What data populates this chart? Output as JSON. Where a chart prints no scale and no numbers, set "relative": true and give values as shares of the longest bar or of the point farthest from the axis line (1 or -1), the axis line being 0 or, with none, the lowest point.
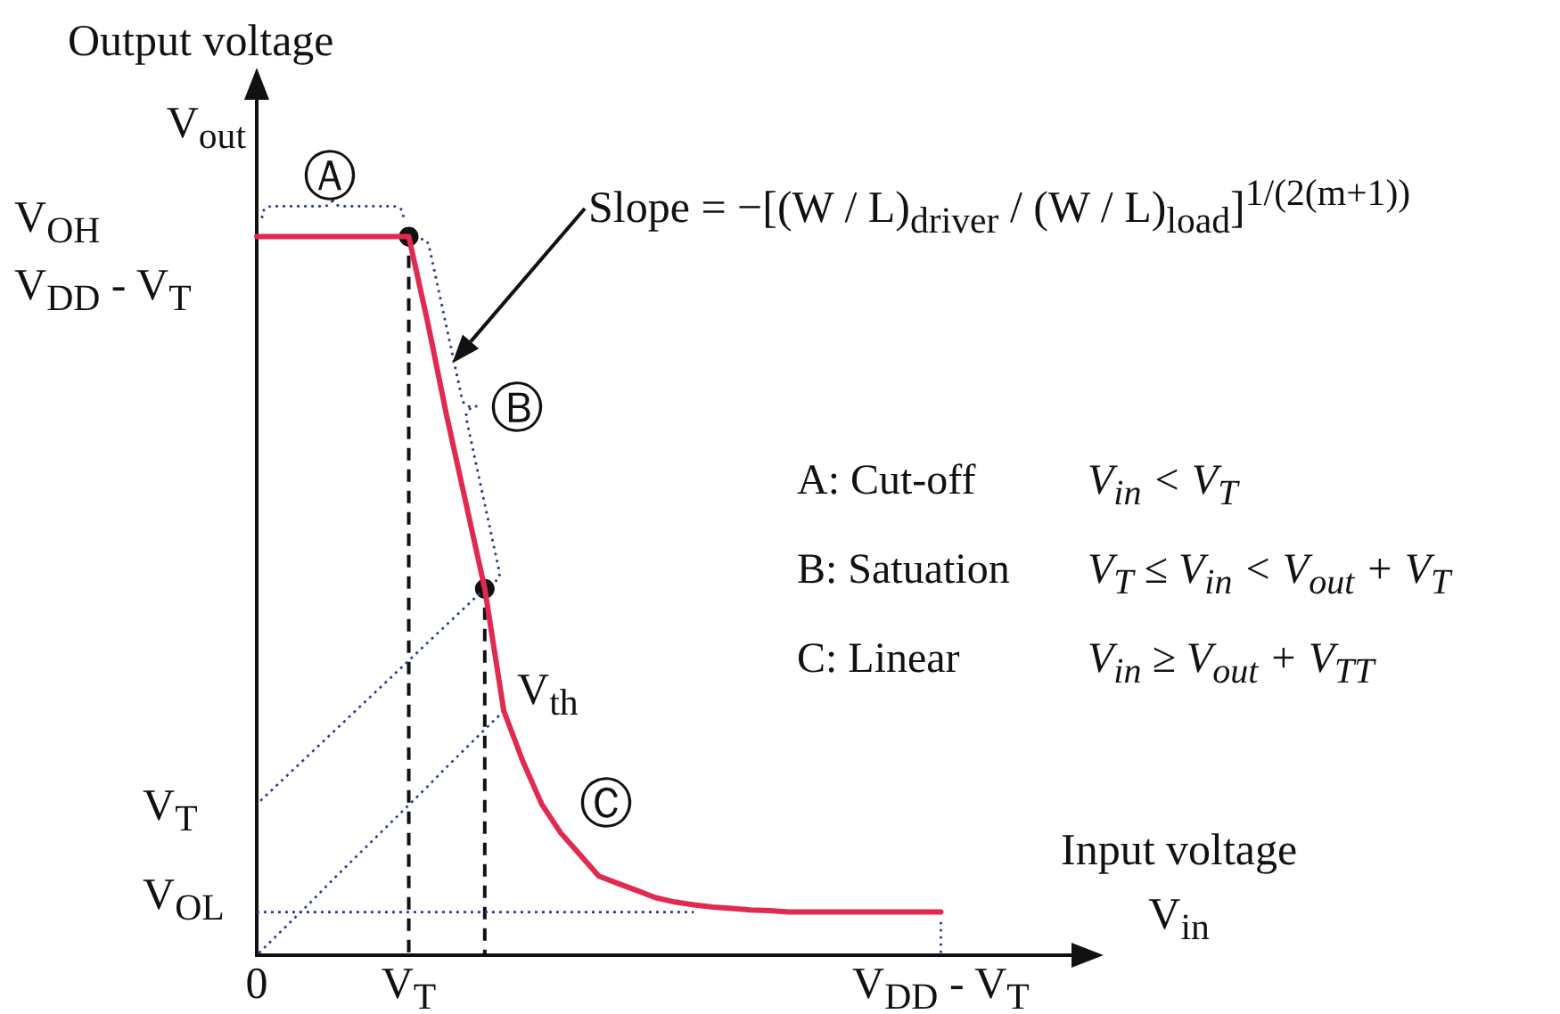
{
  "chart_data": {
    "type": "line",
    "relative": true,
    "xlabel": "Input voltage\nV$_{in}$",
    "ylabel": "Output voltage",
    "categories": [
      "0",
      null,
      null,
      null,
      null,
      null,
      null,
      null,
      "V$_{T}$",
      null,
      null,
      null,
      null,
      null,
      null,
      null,
      null,
      null,
      null,
      null,
      null,
      null,
      null,
      null,
      null,
      null,
      null,
      null,
      null,
      null,
      null,
      null,
      null,
      null,
      null,
      null,
      "V$_{DD}$ - V$_{T}$",
      null,
      null,
      null,
      null,
      null,
      null,
      null,
      null
    ],
    "series": [
      {
        "color": "#e02a50",
        "values": [
          1,
          1,
          1,
          1,
          1,
          1,
          1,
          1,
          1,
          0.88,
          0.75,
          0.63,
          0.51,
          0.34,
          0.27,
          0.21,
          0.17,
          0.14,
          0.11,
          0.1,
          0.09,
          0.08,
          0.074,
          0.07,
          0.067,
          0.065,
          0.063,
          0.062,
          0.06,
          0.06,
          0.06,
          0.06,
          0.06,
          0.06,
          0.06,
          0.06,
          0.06,
          null,
          null,
          null,
          null,
          null,
          null,
          null,
          null
        ]
      },
      {
        "color": "#2a3c8f",
        "line_style": "dotted",
        "values": [
          0,
          0.026,
          0.052,
          0.078,
          0.105,
          0.131,
          0.157,
          0.183,
          0.209,
          0.235,
          0.262,
          0.288,
          0.314,
          0.34,
          null,
          null,
          null,
          null,
          null,
          null,
          null,
          null,
          null,
          null,
          null,
          null,
          null,
          null,
          null,
          null,
          null,
          null,
          null,
          null,
          null,
          null,
          null,
          null,
          null,
          null,
          null,
          null,
          null,
          null,
          null
        ]
      },
      {
        "color": "#2a3c8f",
        "line_style": "dotted",
        "values": [
          0.21,
          0.235,
          0.26,
          0.285,
          0.31,
          0.335,
          0.36,
          0.385,
          0.41,
          0.435,
          0.46,
          0.485,
          0.51,
          null,
          null,
          null,
          null,
          null,
          null,
          null,
          null,
          null,
          null,
          null,
          null,
          null,
          null,
          null,
          null,
          null,
          null,
          null,
          null,
          null,
          null,
          null,
          null,
          null,
          null,
          null,
          null,
          null,
          null,
          null,
          null
        ]
      },
      {
        "color": "#2a3c8f",
        "line_style": "dotted",
        "values": [
          0.06,
          0.06,
          0.06,
          0.06,
          0.06,
          0.06,
          0.06,
          0.06,
          0.06,
          0.06,
          0.06,
          0.06,
          0.06,
          0.06,
          0.06,
          0.06,
          0.06,
          0.06,
          0.06,
          0.06,
          0.06,
          0.06,
          0.06,
          0.06,
          null,
          null,
          null,
          null,
          null,
          null,
          null,
          null,
          null,
          null,
          null,
          null,
          null,
          null,
          null,
          null,
          null,
          null,
          null,
          null,
          null
        ]
      },
      {
        "type": "lollipop",
        "color": "#111111",
        "line_style": "dashed",
        "marker": "circle",
        "values": [
          null,
          null,
          null,
          null,
          null,
          null,
          null,
          null,
          1,
          null,
          null,
          null,
          0.51,
          null,
          null,
          null,
          null,
          null,
          null,
          null,
          null,
          null,
          null,
          null,
          null,
          null,
          null,
          null,
          null,
          null,
          null,
          null,
          null,
          null,
          null,
          null,
          null,
          null,
          null,
          null,
          null,
          null,
          null,
          null,
          null
        ]
      }
    ],
    "annotations": [
      "Slope = −[(W / L)$_{driver}$ / (W / L)$_{load}$]$^{1/(2(m+1))}$",
      "A: Cut-off",
      "V$_{in}$ < V$_{T}$",
      "B: Satuation",
      "V$_{T}$ ≤ V$_{in}$ < V$_{out}$ + V$_{T}$",
      "C: Linear",
      "V$_{in}$ ≥ V$_{out}$ + V$_{TT}$",
      "Ⓐ",
      "Ⓑ",
      "Ⓒ",
      "V$_{th}$",
      "V$_{OH}$",
      "V$_{DD}$ - V$_{T}$",
      "V$_{T}$",
      "V$_{OL}$",
      "V$_{out}$"
    ]
  }
}
